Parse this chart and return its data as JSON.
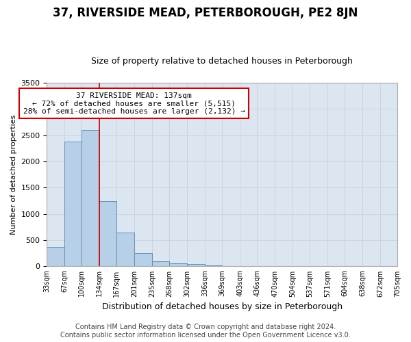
{
  "title": "37, RIVERSIDE MEAD, PETERBOROUGH, PE2 8JN",
  "subtitle": "Size of property relative to detached houses in Peterborough",
  "xlabel": "Distribution of detached houses by size in Peterborough",
  "ylabel": "Number of detached properties",
  "footer_line1": "Contains HM Land Registry data © Crown copyright and database right 2024.",
  "footer_line2": "Contains public sector information licensed under the Open Government Licence v3.0.",
  "annotation_title": "37 RIVERSIDE MEAD: 137sqm",
  "annotation_line1": "← 72% of detached houses are smaller (5,515)",
  "annotation_line2": "28% of semi-detached houses are larger (2,132) →",
  "bar_left_edges": [
    33,
    67,
    100,
    134,
    167,
    201,
    235,
    268,
    302,
    336,
    369,
    403,
    436,
    470,
    504,
    537,
    571,
    604,
    638,
    672
  ],
  "bar_widths": [
    34,
    33,
    34,
    33,
    34,
    34,
    33,
    34,
    34,
    33,
    34,
    33,
    34,
    34,
    33,
    34,
    33,
    34,
    34,
    33
  ],
  "bar_heights": [
    375,
    2380,
    2600,
    1240,
    640,
    250,
    100,
    55,
    45,
    25,
    0,
    0,
    0,
    0,
    0,
    0,
    0,
    0,
    0,
    0
  ],
  "bar_color": "#b8cfe8",
  "bar_edge_color": "#6090b8",
  "property_line_x": 134,
  "property_line_color": "#cc0000",
  "grid_color": "#c8d4e4",
  "bg_color": "#dce6f0",
  "ylim": [
    0,
    3500
  ],
  "xlim": [
    33,
    705
  ],
  "yticks": [
    0,
    500,
    1000,
    1500,
    2000,
    2500,
    3000,
    3500
  ],
  "tick_labels": [
    "33sqm",
    "67sqm",
    "100sqm",
    "134sqm",
    "167sqm",
    "201sqm",
    "235sqm",
    "268sqm",
    "302sqm",
    "336sqm",
    "369sqm",
    "403sqm",
    "436sqm",
    "470sqm",
    "504sqm",
    "537sqm",
    "571sqm",
    "604sqm",
    "638sqm",
    "672sqm",
    "705sqm"
  ],
  "tick_positions": [
    33,
    67,
    100,
    134,
    167,
    201,
    235,
    268,
    302,
    336,
    369,
    403,
    436,
    470,
    504,
    537,
    571,
    604,
    638,
    672,
    705
  ],
  "title_fontsize": 12,
  "subtitle_fontsize": 9,
  "ylabel_fontsize": 8,
  "xlabel_fontsize": 9,
  "footer_fontsize": 7,
  "annot_fontsize": 8
}
